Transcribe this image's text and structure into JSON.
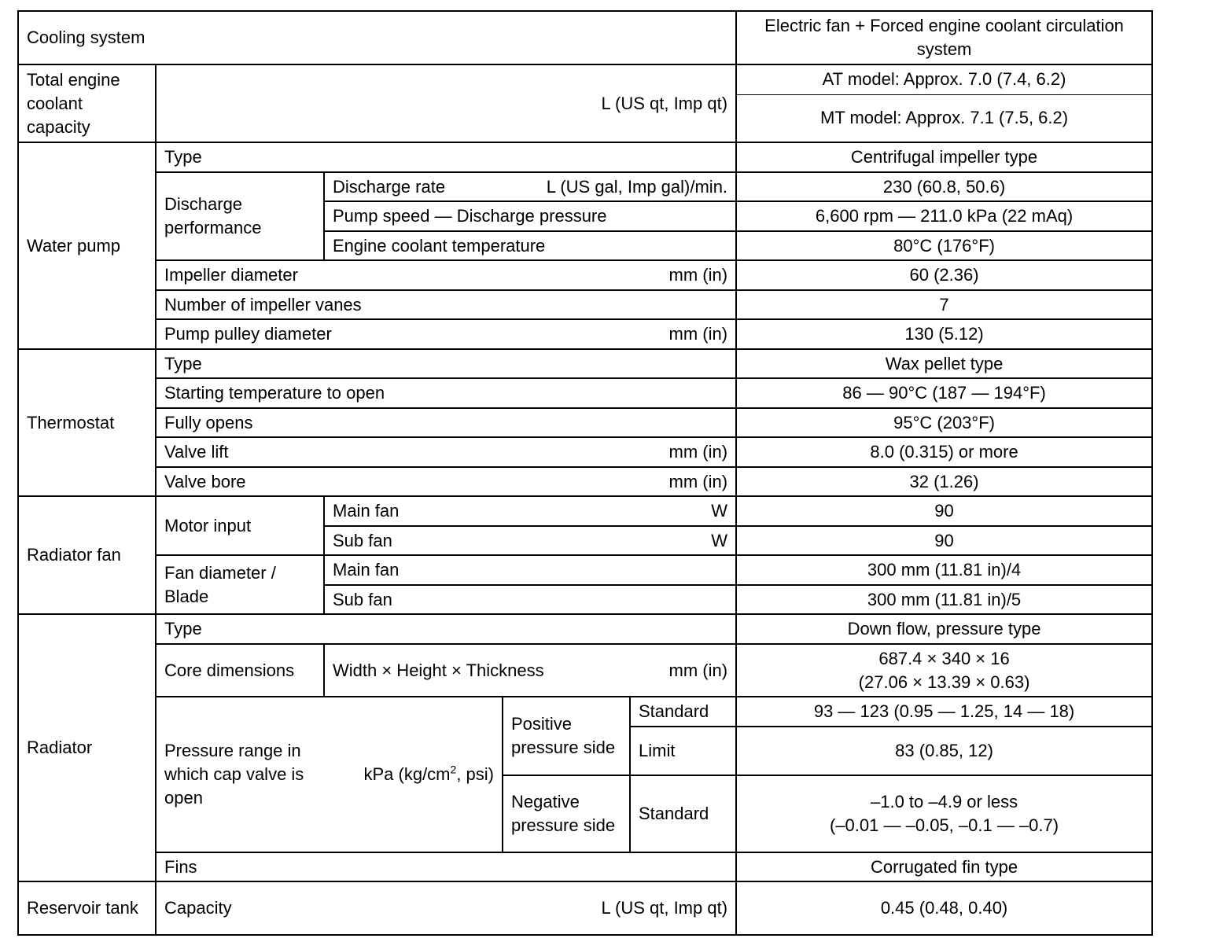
{
  "cooling_system": {
    "label": "Cooling system",
    "value": "Electric fan + Forced engine coolant circulation system"
  },
  "total_coolant": {
    "label": "Total engine coolant capacity",
    "unit": "L (US qt, Imp qt)",
    "at": "AT model: Approx. 7.0 (7.4, 6.2)",
    "mt": "MT model: Approx. 7.1 (7.5, 6.2)"
  },
  "water_pump": {
    "label": "Water pump",
    "type": {
      "label": "Type",
      "value": "Centrifugal impeller type"
    },
    "discharge": {
      "label": "Discharge performance",
      "rate": {
        "label": "Discharge rate",
        "unit": "L (US gal, Imp gal)/min.",
        "value": "230 (60.8, 50.6)"
      },
      "speed": {
        "label": "Pump speed — Discharge pressure",
        "value": "6,600 rpm — 211.0 kPa (22 mAq)"
      },
      "temp": {
        "label": "Engine coolant temperature",
        "value": "80°C (176°F)"
      }
    },
    "impeller_diameter": {
      "label": "Impeller diameter",
      "unit": "mm (in)",
      "value": "60 (2.36)"
    },
    "vanes": {
      "label": "Number of impeller vanes",
      "value": "7"
    },
    "pulley": {
      "label": "Pump pulley diameter",
      "unit": "mm (in)",
      "value": "130 (5.12)"
    }
  },
  "thermostat": {
    "label": "Thermostat",
    "type": {
      "label": "Type",
      "value": "Wax pellet type"
    },
    "start": {
      "label": "Starting temperature to open",
      "value": "86 — 90°C (187 — 194°F)"
    },
    "full": {
      "label": "Fully opens",
      "value": "95°C (203°F)"
    },
    "lift": {
      "label": "Valve lift",
      "unit": "mm (in)",
      "value": "8.0 (0.315) or more"
    },
    "bore": {
      "label": "Valve bore",
      "unit": "mm (in)",
      "value": "32 (1.26)"
    }
  },
  "radiator_fan": {
    "label": "Radiator fan",
    "motor": {
      "label": "Motor input",
      "main": {
        "label": "Main fan",
        "unit": "W",
        "value": "90"
      },
      "sub": {
        "label": "Sub fan",
        "unit": "W",
        "value": "90"
      }
    },
    "diameter": {
      "label": "Fan diameter / Blade",
      "main": {
        "label": "Main fan",
        "value": "300 mm (11.81 in)/4"
      },
      "sub": {
        "label": "Sub fan",
        "value": "300 mm (11.81 in)/5"
      }
    }
  },
  "radiator": {
    "label": "Radiator",
    "type": {
      "label": "Type",
      "value": "Down flow, pressure type"
    },
    "core": {
      "label": "Core dimensions",
      "dims": "Width × Height × Thickness",
      "unit": "mm (in)",
      "value1": "687.4 × 340 × 16",
      "value2": "(27.06 × 13.39 × 0.63)"
    },
    "pressure": {
      "label": "Pressure range in which cap valve is open",
      "unit_pre": "kPa (kg/cm",
      "unit_sup": "2",
      "unit_post": ", psi)",
      "positive": {
        "label": "Positive pressure side",
        "standard": {
          "label": "Standard",
          "value": "93 — 123 (0.95 — 1.25, 14 — 18)"
        },
        "limit": {
          "label": "Limit",
          "value": "83 (0.85, 12)"
        }
      },
      "negative": {
        "label": "Negative pressure side",
        "standard": {
          "label": "Standard",
          "value1": "–1.0 to –4.9 or less",
          "value2": "(–0.01 — –0.05, –0.1 — –0.7)"
        }
      }
    },
    "fins": {
      "label": "Fins",
      "value": "Corrugated fin type"
    }
  },
  "reservoir": {
    "label": "Reservoir tank",
    "capacity": {
      "label": "Capacity",
      "unit": "L (US qt, Imp qt)",
      "value": "0.45 (0.48, 0.40)"
    }
  }
}
